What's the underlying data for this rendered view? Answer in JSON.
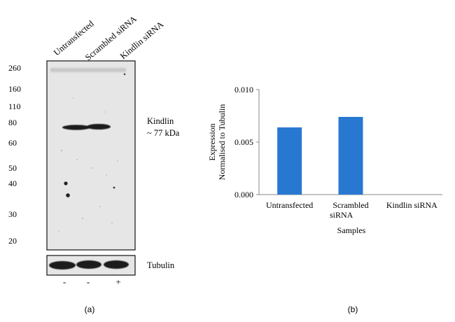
{
  "panel_a": {
    "label": "(a)",
    "lane_labels": [
      "Untransfected",
      "Scrambled siRNA",
      "Kindlin siRNA"
    ],
    "mw_markers": [
      "260",
      "160",
      "110",
      "80",
      "60",
      "50",
      "40",
      "30",
      "20"
    ],
    "band_label_line1": "Kindlin",
    "band_label_line2": "~ 77 kDa",
    "loading_label": "Tubulin",
    "treatment_signs": [
      "-",
      "-",
      "+"
    ]
  },
  "panel_b": {
    "label": "(b)"
  },
  "chart_data": {
    "type": "bar",
    "categories": [
      "Untransfected",
      "Scrambled siRNA",
      "Kindlin siRNA"
    ],
    "category_lines": [
      [
        "Untransfected"
      ],
      [
        "Scrambled",
        "siRNA"
      ],
      [
        "Kindlin siRNA"
      ]
    ],
    "values": [
      0.0064,
      0.0074,
      0.0
    ],
    "title": "",
    "xlabel": "Samples",
    "ylabel_line1": "Expression",
    "ylabel_line2": "Normalised to Tubulin",
    "ylim": [
      0,
      0.01
    ],
    "yticks": [
      "0.000",
      "0.005",
      "0.010"
    ],
    "bar_color": "#2878d2",
    "grid": false,
    "legend": "none"
  }
}
